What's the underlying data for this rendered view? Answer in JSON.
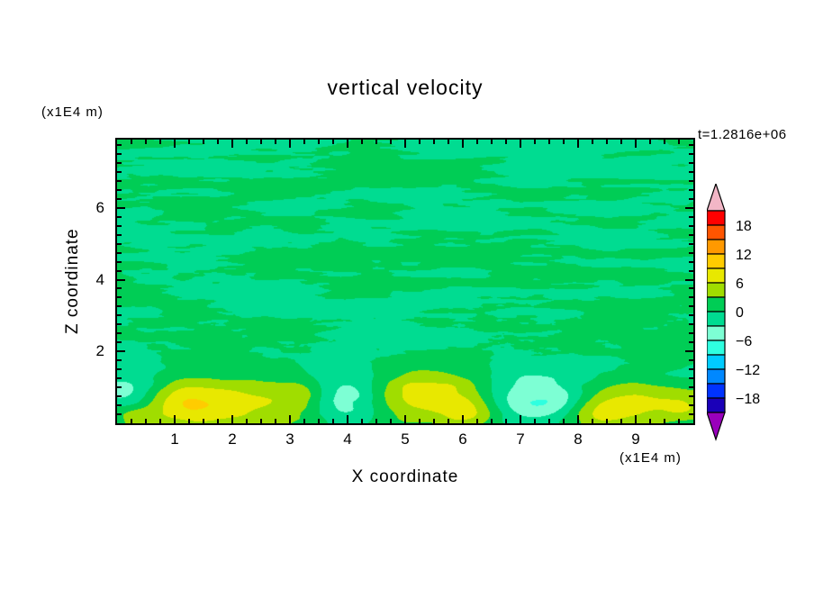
{
  "chart_data": {
    "type": "heatmap",
    "title": "vertical velocity",
    "xlabel": "X coordinate",
    "ylabel": "Z coordinate",
    "x_unit": "(x1E4 m)",
    "y_unit": "(x1E4 m)",
    "timestamp": "t=1.2816e+06",
    "xlim": [
      0,
      10
    ],
    "ylim": [
      0,
      7.9
    ],
    "x_ticks": [
      1,
      2,
      3,
      4,
      5,
      6,
      7,
      8,
      9
    ],
    "y_ticks": [
      2,
      4,
      6
    ],
    "x_minor_step": 0.25,
    "y_minor_step": 0.25,
    "contour_interval": 3,
    "level_min": -21,
    "level_max": 21,
    "colorbar": {
      "labels": [
        "18",
        "12",
        "6",
        "0",
        "−6",
        "−12",
        "−18"
      ],
      "colors_ascending": [
        "#1a00b8",
        "#0033ff",
        "#0088ff",
        "#00ccff",
        "#2fffe0",
        "#7dffd4",
        "#00dc91",
        "#00cd55",
        "#a0dd00",
        "#e8e800",
        "#ffcc00",
        "#ff9900",
        "#ff5500",
        "#ff0000"
      ],
      "top_arrow_color": "#f2b6c6",
      "bottom_arrow_color": "#9900bb"
    },
    "field": {
      "description": "Quantized contour field of vertical velocity: thin horizontally elongated streak bands near 0 (between -3 and +3) filling the upper region, with larger convective blobs near the bottom boundary reaching +6..+9 (yellow-green) and -6..-9 (cyan)",
      "seed": 7,
      "streak_amp": 3.1,
      "streak_fx": 0.7,
      "streak_fz": 3.6,
      "fine_amp": 1.6,
      "fine_fx": 2.6,
      "fine_fz": 6.0,
      "fine_zc": 2.6,
      "fine_zw": 1.0,
      "bottom_amp": 3.2,
      "bottom_fx": 0.5,
      "bottom_fz": 0.9,
      "blend_z0": 1.5,
      "blend_z1": 2.15,
      "bottom_features": [
        {
          "x": 0.2,
          "z": 0.8,
          "sx": 0.4,
          "sz": 0.45,
          "amp": -5.5
        },
        {
          "x": 0.3,
          "z": 0.2,
          "sx": 0.35,
          "sz": 0.3,
          "amp": 5.0
        },
        {
          "x": 1.15,
          "z": 0.55,
          "sx": 0.5,
          "sz": 0.45,
          "amp": 6.5
        },
        {
          "x": 2.3,
          "z": 0.5,
          "sx": 0.55,
          "sz": 0.4,
          "amp": 6.0
        },
        {
          "x": 3.2,
          "z": 0.8,
          "sx": 0.35,
          "sz": 0.35,
          "amp": 5.0
        },
        {
          "x": 3.95,
          "z": 0.6,
          "sx": 0.5,
          "sz": 0.5,
          "amp": -6.0
        },
        {
          "x": 5.35,
          "z": 0.7,
          "sx": 0.8,
          "sz": 0.55,
          "amp": 7.5
        },
        {
          "x": 6.15,
          "z": 0.25,
          "sx": 0.4,
          "sz": 0.3,
          "amp": 5.5
        },
        {
          "x": 6.9,
          "z": 0.7,
          "sx": 0.45,
          "sz": 0.45,
          "amp": -5.5
        },
        {
          "x": 7.7,
          "z": 0.55,
          "sx": 0.4,
          "sz": 0.4,
          "amp": -5.0
        },
        {
          "x": 8.2,
          "z": 0.3,
          "sx": 0.35,
          "sz": 0.3,
          "amp": 4.5
        },
        {
          "x": 8.95,
          "z": 0.6,
          "sx": 0.55,
          "sz": 0.5,
          "amp": 7.0
        },
        {
          "x": 9.95,
          "z": 0.5,
          "sx": 0.45,
          "sz": 0.45,
          "amp": 5.5
        }
      ]
    }
  }
}
